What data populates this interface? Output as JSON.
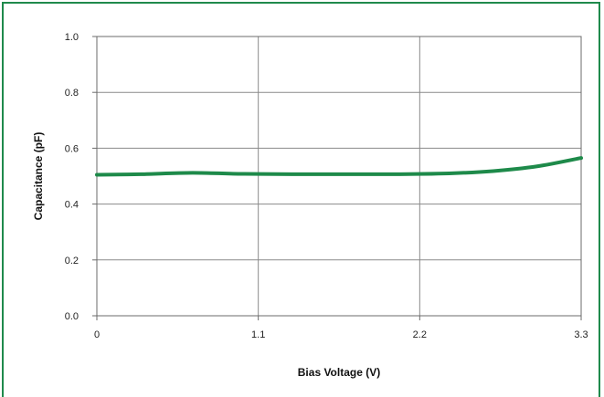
{
  "chart_data": {
    "type": "line",
    "title": "",
    "xlabel": "Bias Voltage (V)",
    "ylabel": "Capacitance (pF)",
    "xlim": [
      0,
      3.3
    ],
    "ylim": [
      0,
      1.0
    ],
    "x_ticks": [
      "0",
      "1.1",
      "2.2",
      "3.3"
    ],
    "y_ticks": [
      "0.0",
      "0.2",
      "0.4",
      "0.6",
      "0.8",
      "1.0"
    ],
    "grid": true,
    "legend": "none",
    "series": [
      {
        "color": "#1e8a4a",
        "x": [
          0,
          0.3,
          0.65,
          1.0,
          1.5,
          2.0,
          2.4,
          2.7,
          3.0,
          3.3
        ],
        "y": [
          0.505,
          0.507,
          0.512,
          0.508,
          0.507,
          0.507,
          0.51,
          0.518,
          0.535,
          0.565
        ]
      }
    ]
  }
}
